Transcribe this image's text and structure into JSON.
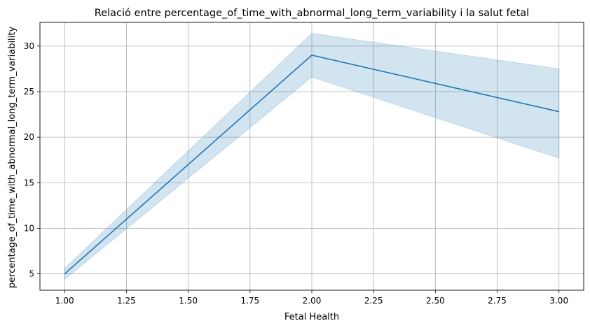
{
  "chart_data": {
    "type": "line",
    "title": "Relació entre percentage_of_time_with_abnormal_long_term_variability i la salut fetal",
    "xlabel": "Fetal Health",
    "ylabel": "percentage_of_time_with_abnormal_long_term_variability",
    "xlim": [
      0.9,
      3.1
    ],
    "ylim": [
      3.2,
      32.6
    ],
    "xticks": [
      1.0,
      1.25,
      1.5,
      1.75,
      2.0,
      2.25,
      2.5,
      2.75,
      3.0
    ],
    "xtick_labels": [
      "1.00",
      "1.25",
      "1.50",
      "1.75",
      "2.00",
      "2.25",
      "2.50",
      "2.75",
      "3.00"
    ],
    "yticks": [
      5,
      10,
      15,
      20,
      25,
      30
    ],
    "ytick_labels": [
      "5",
      "10",
      "15",
      "20",
      "25",
      "30"
    ],
    "grid": true,
    "series": [
      {
        "x": [
          1.0,
          2.0,
          3.0
        ],
        "y": [
          5.0,
          29.0,
          22.8
        ],
        "ci_lower": [
          4.4,
          26.6,
          17.7
        ],
        "ci_upper": [
          5.6,
          31.4,
          27.5
        ],
        "color": "#1f77b4"
      }
    ]
  }
}
